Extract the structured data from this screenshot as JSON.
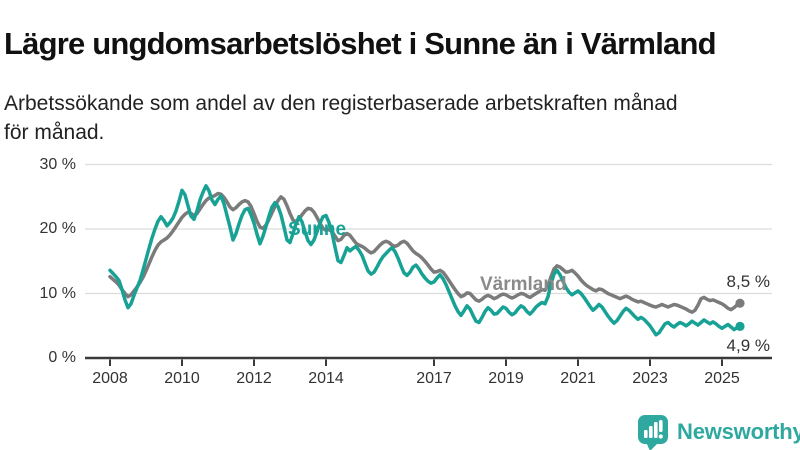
{
  "title": "Lägre ungdomsarbetslöshet i Sunne än i Värmland",
  "subtitle": "Arbetssökande som andel av den registerbaserade arbetskraften månad för månad.",
  "branding": {
    "logo_text": "Newsworthy",
    "logo_icon": "bar-chart-speech-bubble-icon",
    "logo_color": "#2fa9a0"
  },
  "colors": {
    "sunne": "#17a295",
    "varmland": "#7b7b7b",
    "axis": "#3a3a3a",
    "gridline": "#dcdcdc",
    "text": "#333333"
  },
  "chart_data": {
    "type": "line",
    "x_unit": "month",
    "x_start": "2008-01",
    "x_end": "2025-07",
    "x_ticks": [
      2008,
      2010,
      2012,
      2014,
      2017,
      2019,
      2021,
      2023,
      2025
    ],
    "y_ticks": [
      0,
      10,
      20,
      30
    ],
    "y_tick_suffix": " %",
    "ylim": [
      0,
      33
    ],
    "grid": "horizontal",
    "legend_position": "inline-labels",
    "series": [
      {
        "id": "varmland",
        "name": "Värmland",
        "color": "#7b7b7b",
        "end_label": "8,5 %",
        "end_value": 8.5,
        "values": [
          12.6,
          12.2,
          11.8,
          11.3,
          10.6,
          10.0,
          9.5,
          9.8,
          10.4,
          11.0,
          11.7,
          12.5,
          13.5,
          14.6,
          15.7,
          16.7,
          17.5,
          18.0,
          18.3,
          18.6,
          19.1,
          19.7,
          20.4,
          21.1,
          21.8,
          22.3,
          22.6,
          22.4,
          22.1,
          22.4,
          23.1,
          23.8,
          24.4,
          24.8,
          25.0,
          25.2,
          25.5,
          25.4,
          24.9,
          24.2,
          23.4,
          23.0,
          23.3,
          23.8,
          24.2,
          24.4,
          24.2,
          23.5,
          22.4,
          21.2,
          20.3,
          20.1,
          20.6,
          21.5,
          22.5,
          23.5,
          24.4,
          25.0,
          24.6,
          23.6,
          22.4,
          21.4,
          21.1,
          21.5,
          22.2,
          22.8,
          23.2,
          23.1,
          22.6,
          21.8,
          20.9,
          20.1,
          19.8,
          19.9,
          19.6,
          18.9,
          18.2,
          18.4,
          19.0,
          19.3,
          19.0,
          18.4,
          17.8,
          17.5,
          17.3,
          17.0,
          16.6,
          16.3,
          16.5,
          17.0,
          17.5,
          17.9,
          18.1,
          17.9,
          17.5,
          17.3,
          17.5,
          17.9,
          18.1,
          17.8,
          17.2,
          16.6,
          16.2,
          15.9,
          15.5,
          15.0,
          14.4,
          13.8,
          13.3,
          13.4,
          13.6,
          13.3,
          12.7,
          12.0,
          11.3,
          10.6,
          10.0,
          9.5,
          9.7,
          10.1,
          10.0,
          9.5,
          9.0,
          8.8,
          9.1,
          9.5,
          9.7,
          9.5,
          9.2,
          9.4,
          9.7,
          9.9,
          9.8,
          9.5,
          9.3,
          9.5,
          9.8,
          10.0,
          9.9,
          9.6,
          9.4,
          9.7,
          10.0,
          10.3,
          10.6,
          10.5,
          11.2,
          12.6,
          13.8,
          14.3,
          14.1,
          13.7,
          13.3,
          13.4,
          13.6,
          13.2,
          12.7,
          12.1,
          11.6,
          11.2,
          10.9,
          10.6,
          10.4,
          10.7,
          10.6,
          10.3,
          10.0,
          9.8,
          9.6,
          9.4,
          9.2,
          9.4,
          9.6,
          9.4,
          9.1,
          8.9,
          8.7,
          8.8,
          8.6,
          8.4,
          8.2,
          8.0,
          7.9,
          8.1,
          8.3,
          8.1,
          7.9,
          8.1,
          8.3,
          8.2,
          8.0,
          7.8,
          7.6,
          7.3,
          7.1,
          7.4,
          8.2,
          9.2,
          9.4,
          9.1,
          8.9,
          9.0,
          8.8,
          8.6,
          8.4,
          8.1,
          7.7,
          7.5,
          7.8,
          8.2,
          8.5
        ]
      },
      {
        "id": "sunne",
        "name": "Sunne",
        "color": "#17a295",
        "end_label": "4,9 %",
        "end_value": 4.9,
        "values": [
          13.6,
          13.1,
          12.6,
          12.0,
          10.6,
          9.0,
          7.8,
          8.4,
          9.7,
          10.9,
          12.0,
          13.6,
          15.3,
          17.0,
          18.6,
          20.0,
          21.2,
          21.9,
          21.3,
          20.5,
          21.0,
          21.7,
          22.8,
          24.3,
          26.0,
          25.3,
          23.6,
          22.0,
          21.5,
          22.8,
          24.5,
          25.7,
          26.7,
          25.9,
          24.5,
          23.8,
          24.6,
          25.1,
          23.9,
          22.1,
          20.3,
          18.3,
          19.3,
          20.8,
          22.1,
          23.0,
          23.2,
          22.2,
          20.9,
          19.2,
          17.7,
          18.9,
          20.4,
          22.0,
          23.4,
          24.1,
          23.5,
          22.2,
          20.3,
          18.3,
          17.9,
          19.3,
          20.8,
          21.9,
          21.1,
          19.6,
          18.2,
          17.6,
          18.3,
          19.6,
          20.9,
          21.9,
          22.1,
          21.0,
          19.4,
          17.2,
          15.1,
          14.8,
          15.9,
          17.1,
          16.6,
          17.0,
          17.3,
          16.7,
          15.9,
          14.7,
          13.5,
          13.0,
          13.3,
          14.1,
          15.0,
          15.7,
          16.2,
          16.7,
          17.1,
          16.5,
          15.5,
          14.3,
          13.2,
          12.8,
          13.3,
          14.1,
          14.4,
          13.8,
          13.0,
          12.4,
          11.9,
          11.6,
          11.8,
          12.4,
          12.9,
          12.3,
          11.4,
          10.3,
          9.2,
          8.1,
          7.2,
          6.6,
          7.3,
          8.1,
          7.6,
          6.6,
          5.7,
          5.5,
          6.3,
          7.2,
          7.8,
          7.4,
          6.8,
          6.9,
          7.4,
          7.9,
          7.7,
          7.1,
          6.7,
          7.0,
          7.6,
          8.1,
          7.8,
          7.2,
          6.8,
          7.3,
          7.9,
          8.3,
          8.6,
          8.4,
          9.5,
          11.5,
          13.0,
          13.6,
          12.9,
          11.9,
          10.9,
          10.2,
          9.8,
          10.1,
          10.4,
          10.0,
          9.4,
          8.7,
          8.0,
          7.4,
          7.8,
          8.3,
          7.9,
          7.2,
          6.5,
          5.9,
          5.4,
          5.8,
          6.5,
          7.2,
          7.7,
          7.4,
          6.9,
          6.4,
          6.0,
          6.3,
          6.0,
          5.5,
          5.0,
          4.3,
          3.6,
          3.9,
          4.6,
          5.3,
          5.5,
          5.1,
          4.8,
          5.2,
          5.5,
          5.3,
          5.0,
          5.3,
          5.7,
          5.4,
          5.1,
          5.5,
          5.9,
          5.6,
          5.3,
          5.6,
          5.3,
          4.9,
          4.6,
          4.9,
          5.2,
          4.8,
          4.4,
          4.7,
          4.9
        ]
      }
    ]
  }
}
